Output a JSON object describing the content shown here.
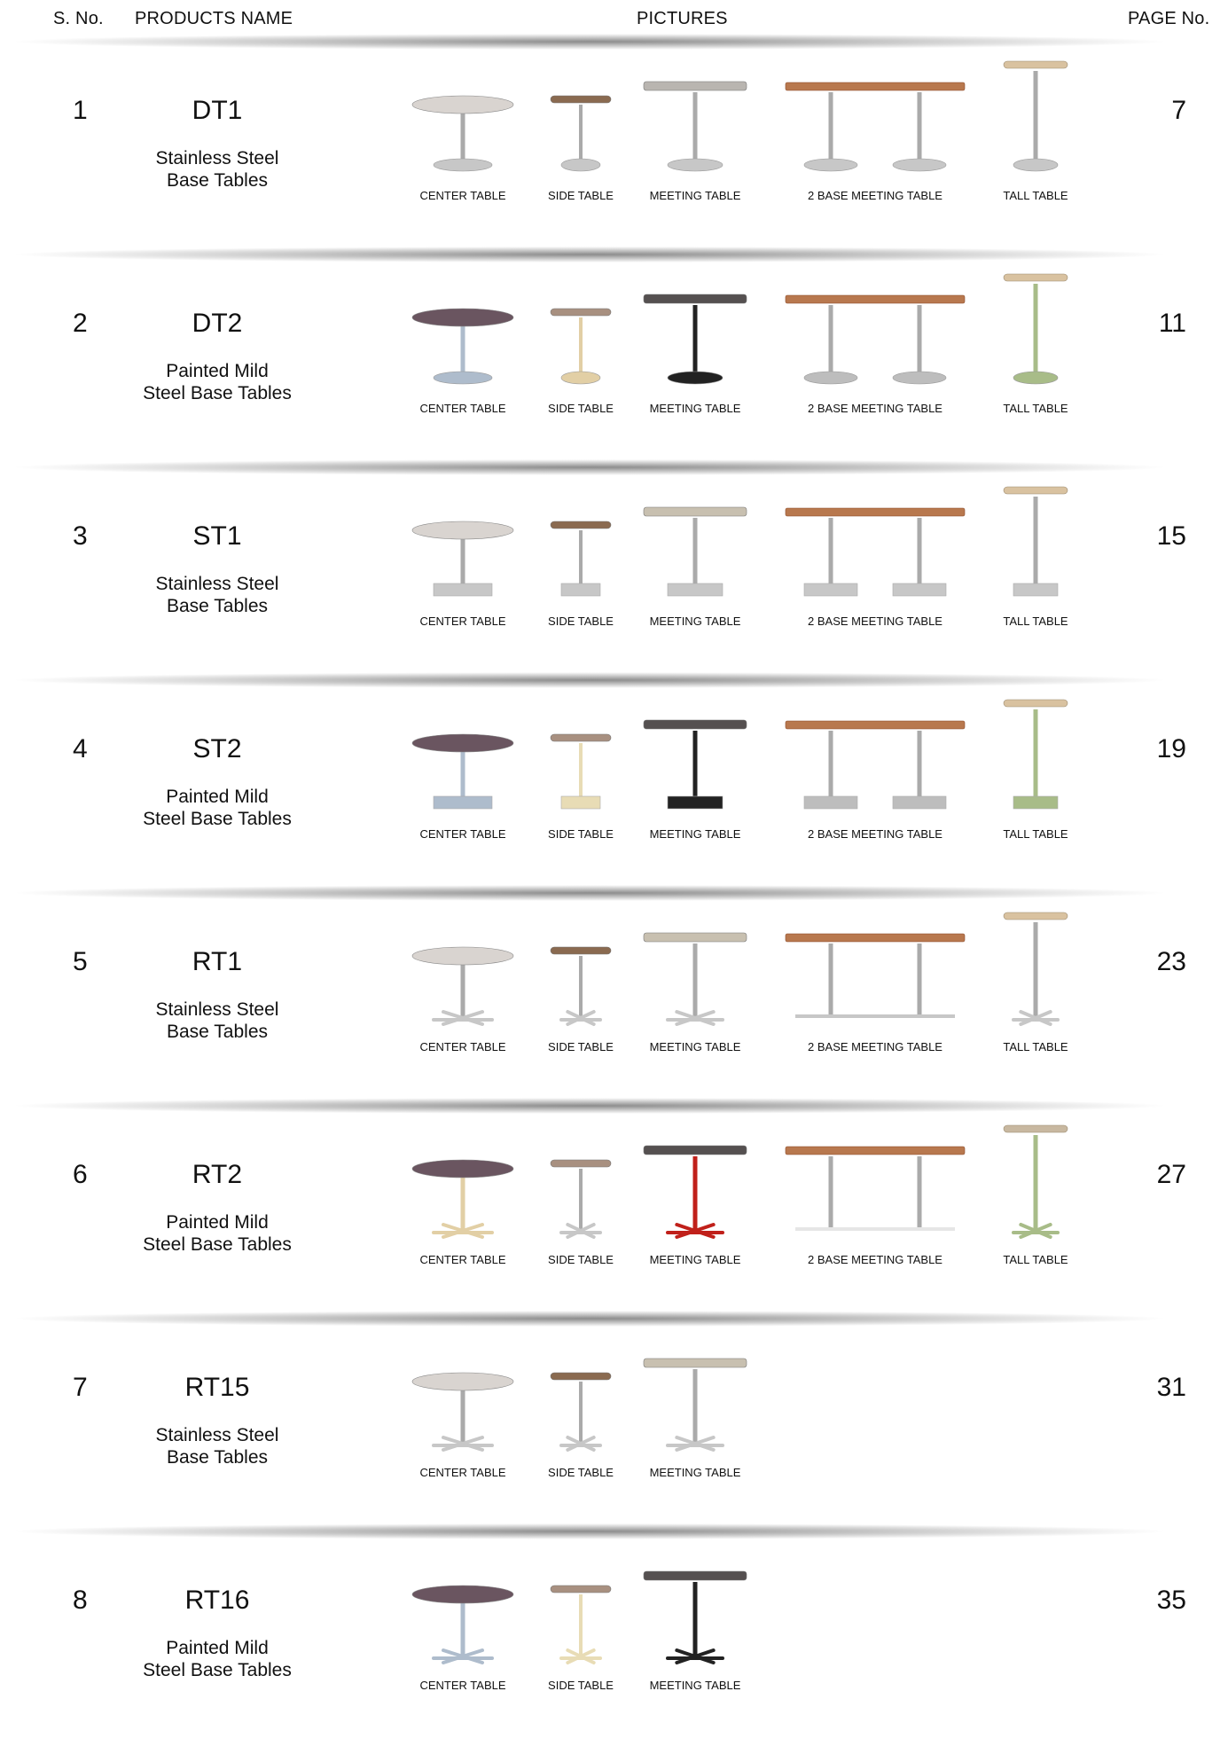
{
  "header": {
    "sno": "S. No.",
    "products_name": "PRODUCTS NAME",
    "pictures": "PICTURES",
    "page_no": "PAGE No."
  },
  "rows": [
    {
      "sno": "1",
      "code": "DT1",
      "desc_line1": "Stainless Steel",
      "desc_line2": "Base Tables",
      "page": "7",
      "base_style": "disc",
      "items": [
        {
          "label": "CENTER TABLE",
          "type": "center",
          "top": "#d9d4d0",
          "base": "#c7c7c7"
        },
        {
          "label": "SIDE TABLE",
          "type": "side",
          "top": "#8a6a50",
          "base": "#c7c7c7"
        },
        {
          "label": "MEETING TABLE",
          "type": "meeting",
          "top": "#b9b5b0",
          "base": "#c7c7c7"
        },
        {
          "label": "2 BASE MEETING TABLE",
          "type": "two_base",
          "top": "#b8784e",
          "base": "#c7c7c7"
        },
        {
          "label": "TALL TABLE",
          "type": "tall",
          "top": "#d9c2a0",
          "base": "#c7c7c7"
        }
      ]
    },
    {
      "sno": "2",
      "code": "DT2",
      "desc_line1": "Painted Mild",
      "desc_line2": "Steel Base Tables",
      "page": "11",
      "base_style": "disc",
      "items": [
        {
          "label": "CENTER TABLE",
          "type": "center",
          "top": "#6a5560",
          "base": "#aebccc"
        },
        {
          "label": "SIDE TABLE",
          "type": "side",
          "top": "#a89080",
          "base": "#e2cfa5"
        },
        {
          "label": "MEETING TABLE",
          "type": "meeting",
          "top": "#555050",
          "base": "#222222"
        },
        {
          "label": "2 BASE MEETING TABLE",
          "type": "two_base",
          "top": "#b8784e",
          "base": "#bdbdbd"
        },
        {
          "label": "TALL TABLE",
          "type": "tall",
          "top": "#d9c2a0",
          "base": "#a8bc88"
        }
      ]
    },
    {
      "sno": "3",
      "code": "ST1",
      "desc_line1": "Stainless Steel",
      "desc_line2": "Base Tables",
      "page": "15",
      "base_style": "square",
      "items": [
        {
          "label": "CENTER TABLE",
          "type": "center",
          "top": "#d9d4d0",
          "base": "#c7c7c7"
        },
        {
          "label": "SIDE TABLE",
          "type": "side",
          "top": "#8a6a50",
          "base": "#c7c7c7"
        },
        {
          "label": "MEETING TABLE",
          "type": "meeting",
          "top": "#c8c0b0",
          "base": "#c7c7c7"
        },
        {
          "label": "2 BASE MEETING TABLE",
          "type": "two_base",
          "top": "#b8784e",
          "base": "#c7c7c7"
        },
        {
          "label": "TALL TABLE",
          "type": "tall",
          "top": "#d9c2a0",
          "base": "#c7c7c7"
        }
      ]
    },
    {
      "sno": "4",
      "code": "ST2",
      "desc_line1": "Painted Mild",
      "desc_line2": "Steel Base Tables",
      "page": "19",
      "base_style": "square",
      "items": [
        {
          "label": "CENTER TABLE",
          "type": "center",
          "top": "#6a5560",
          "base": "#aebccc"
        },
        {
          "label": "SIDE TABLE",
          "type": "side",
          "top": "#a89080",
          "base": "#e8dcb5"
        },
        {
          "label": "MEETING TABLE",
          "type": "meeting",
          "top": "#555050",
          "base": "#222222"
        },
        {
          "label": "2 BASE MEETING TABLE",
          "type": "two_base",
          "top": "#b8784e",
          "base": "#bdbdbd"
        },
        {
          "label": "TALL TABLE",
          "type": "tall",
          "top": "#d9c2a0",
          "base": "#a8bc88"
        }
      ]
    },
    {
      "sno": "5",
      "code": "RT1",
      "desc_line1": "Stainless Steel",
      "desc_line2": "Base Tables",
      "page": "23",
      "base_style": "star",
      "items": [
        {
          "label": "CENTER TABLE",
          "type": "center",
          "top": "#d9d4d0",
          "base": "#c7c7c7"
        },
        {
          "label": "SIDE TABLE",
          "type": "side",
          "top": "#8a6a50",
          "base": "#c7c7c7"
        },
        {
          "label": "MEETING TABLE",
          "type": "meeting",
          "top": "#c8c0b0",
          "base": "#c7c7c7"
        },
        {
          "label": "2 BASE MEETING TABLE",
          "type": "two_base",
          "top": "#b8784e",
          "base": "#c7c7c7"
        },
        {
          "label": "TALL TABLE",
          "type": "tall",
          "top": "#d9c2a0",
          "base": "#c7c7c7"
        }
      ]
    },
    {
      "sno": "6",
      "code": "RT2",
      "desc_line1": "Painted Mild",
      "desc_line2": "Steel Base Tables",
      "page": "27",
      "base_style": "star",
      "items": [
        {
          "label": "CENTER TABLE",
          "type": "center",
          "top": "#6a5560",
          "base": "#e2cfa5"
        },
        {
          "label": "SIDE TABLE",
          "type": "side",
          "top": "#a89080",
          "base": "#c7c7c7"
        },
        {
          "label": "MEETING TABLE",
          "type": "meeting",
          "top": "#555050",
          "base": "#c0201a"
        },
        {
          "label": "2 BASE MEETING TABLE",
          "type": "two_base",
          "top": "#b8784e",
          "base": "#e6e6e6"
        },
        {
          "label": "TALL TABLE",
          "type": "tall",
          "top": "#c8b8a0",
          "base": "#a8bc88"
        }
      ]
    },
    {
      "sno": "7",
      "code": "RT15",
      "desc_line1": "Stainless Steel",
      "desc_line2": "Base Tables",
      "page": "31",
      "base_style": "star",
      "items": [
        {
          "label": "CENTER TABLE",
          "type": "center",
          "top": "#d9d4d0",
          "base": "#c7c7c7"
        },
        {
          "label": "SIDE TABLE",
          "type": "side",
          "top": "#8a6a50",
          "base": "#c7c7c7"
        },
        {
          "label": "MEETING TABLE",
          "type": "meeting",
          "top": "#c8c0b0",
          "base": "#c7c7c7"
        }
      ]
    },
    {
      "sno": "8",
      "code": "RT16",
      "desc_line1": "Painted Mild",
      "desc_line2": "Steel Base Tables",
      "page": "35",
      "base_style": "star",
      "items": [
        {
          "label": "CENTER TABLE",
          "type": "center",
          "top": "#6a5560",
          "base": "#aebccc"
        },
        {
          "label": "SIDE TABLE",
          "type": "side",
          "top": "#a89080",
          "base": "#e8dcb5"
        },
        {
          "label": "MEETING TABLE",
          "type": "meeting",
          "top": "#555050",
          "base": "#222222"
        }
      ]
    }
  ]
}
